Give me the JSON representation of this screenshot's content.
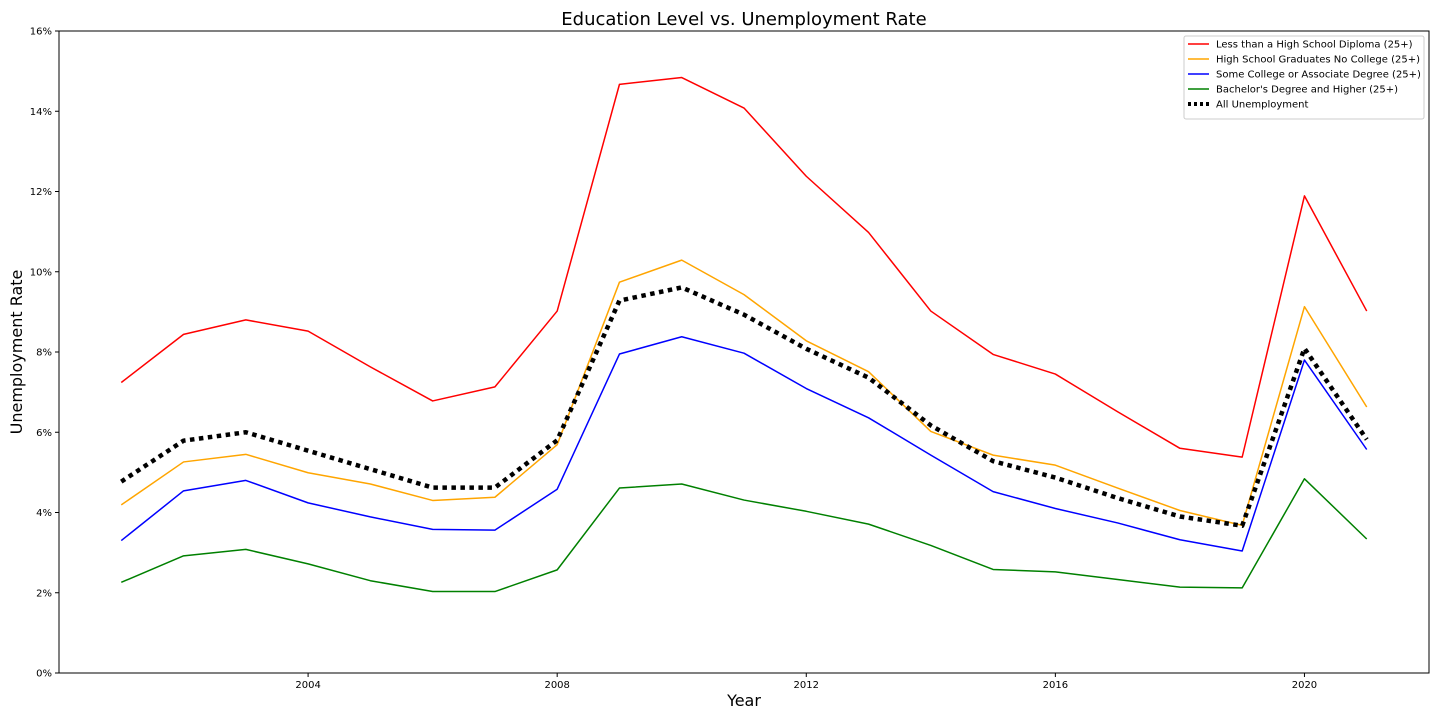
{
  "chart_data": {
    "type": "line",
    "title": "Education Level vs. Unemployment Rate",
    "xlabel": "Year",
    "ylabel": "Unemployment Rate",
    "x": [
      2001,
      2002,
      2003,
      2004,
      2005,
      2006,
      2007,
      2008,
      2009,
      2010,
      2011,
      2012,
      2013,
      2014,
      2015,
      2016,
      2017,
      2018,
      2019,
      2020,
      2021
    ],
    "xlim": [
      2000,
      2022
    ],
    "ylim": [
      0,
      16
    ],
    "x_ticks": [
      2004,
      2008,
      2012,
      2016,
      2020
    ],
    "x_tick_labels": [
      "2004",
      "2008",
      "2012",
      "2016",
      "2020"
    ],
    "y_ticks": [
      0,
      2,
      4,
      6,
      8,
      10,
      12,
      14,
      16
    ],
    "y_tick_labels": [
      "0%",
      "2%",
      "4%",
      "6%",
      "8%",
      "10%",
      "12%",
      "14%",
      "16%"
    ],
    "grid": false,
    "legend_position": "top-right",
    "series": [
      {
        "name": "Less than a High School Diploma (25+)",
        "color": "#ff0000",
        "style": "solid",
        "values": [
          7.24,
          8.44,
          8.8,
          8.52,
          7.63,
          6.78,
          7.13,
          9.02,
          14.67,
          14.84,
          14.08,
          12.38,
          10.98,
          9.02,
          7.94,
          7.45,
          6.51,
          5.6,
          5.38,
          11.89,
          9.02
        ]
      },
      {
        "name": "High School Graduates No College (25+)",
        "color": "#ffa500",
        "style": "solid",
        "values": [
          4.19,
          5.26,
          5.45,
          4.99,
          4.71,
          4.3,
          4.38,
          5.69,
          9.74,
          10.29,
          9.43,
          8.28,
          7.51,
          6.02,
          5.43,
          5.18,
          4.61,
          4.05,
          3.68,
          9.13,
          6.63
        ]
      },
      {
        "name": "Some College or Associate Degree (25+)",
        "color": "#0000ff",
        "style": "solid",
        "values": [
          3.3,
          4.54,
          4.8,
          4.24,
          3.89,
          3.58,
          3.56,
          4.58,
          7.95,
          8.38,
          7.97,
          7.09,
          6.36,
          5.43,
          4.52,
          4.1,
          3.74,
          3.32,
          3.04,
          7.8,
          5.57
        ]
      },
      {
        "name": "Bachelor's Degree and Higher (25+)",
        "color": "#008000",
        "style": "solid",
        "values": [
          2.26,
          2.92,
          3.08,
          2.72,
          2.3,
          2.03,
          2.03,
          2.57,
          4.61,
          4.71,
          4.31,
          4.03,
          3.71,
          3.18,
          2.58,
          2.52,
          2.33,
          2.14,
          2.12,
          4.84,
          3.34
        ]
      },
      {
        "name": "All Unemployment",
        "color": "#000000",
        "style": "dotted",
        "values": [
          4.77,
          5.79,
          6.0,
          5.54,
          5.08,
          4.62,
          4.62,
          5.8,
          9.28,
          9.61,
          8.93,
          8.08,
          7.36,
          6.17,
          5.28,
          4.87,
          4.36,
          3.9,
          3.67,
          8.09,
          5.82
        ]
      }
    ]
  }
}
